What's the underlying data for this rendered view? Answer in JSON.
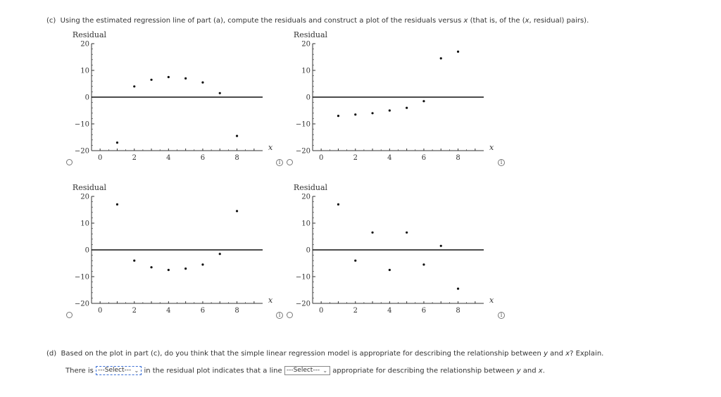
{
  "part_c": {
    "prefix": "(c)",
    "text_before": "Using the estimated regression line of part (a), compute the residuals and construct a plot of the residuals versus ",
    "var_x": "x",
    "text_middle": " (that is, of the (",
    "var_x2": "x",
    "text_after": ", residual) pairs)."
  },
  "plot_labels": {
    "ylabel": "Residual",
    "xlabel": "x",
    "yticks": [
      "20",
      "10",
      "0",
      "−10",
      "−20"
    ],
    "xticks": [
      "0",
      "2",
      "4",
      "6",
      "8"
    ]
  },
  "chart_data": [
    {
      "type": "scatter",
      "xlabel": "x",
      "ylabel": "Residual",
      "xlim": [
        -0.5,
        9.5
      ],
      "ylim": [
        -20,
        20
      ],
      "reference_line_y": 0,
      "x": [
        1,
        2,
        3,
        4,
        5,
        6,
        7,
        8
      ],
      "y": [
        -17,
        4,
        6.5,
        7.5,
        7,
        5.5,
        1.5,
        -14.5
      ]
    },
    {
      "type": "scatter",
      "xlabel": "x",
      "ylabel": "Residual",
      "xlim": [
        -0.5,
        9.5
      ],
      "ylim": [
        -20,
        20
      ],
      "reference_line_y": 0,
      "x": [
        1,
        2,
        3,
        4,
        5,
        6,
        7,
        8
      ],
      "y": [
        -7,
        -6.5,
        -6,
        -5,
        -4,
        -1.5,
        14.5,
        17
      ]
    },
    {
      "type": "scatter",
      "xlabel": "x",
      "ylabel": "Residual",
      "xlim": [
        -0.5,
        9.5
      ],
      "ylim": [
        -20,
        20
      ],
      "reference_line_y": 0,
      "x": [
        1,
        2,
        3,
        4,
        5,
        6,
        7,
        8
      ],
      "y": [
        17,
        -4,
        -6.5,
        -7.5,
        -7,
        -5.5,
        -1.5,
        14.5
      ]
    },
    {
      "type": "scatter",
      "xlabel": "x",
      "ylabel": "Residual",
      "xlim": [
        -0.5,
        9.5
      ],
      "ylim": [
        -20,
        20
      ],
      "reference_line_y": 0,
      "x": [
        1,
        2,
        3,
        4,
        5,
        6,
        7,
        8
      ],
      "y": [
        17,
        -4,
        6.5,
        -7.5,
        6.5,
        -5.5,
        1.5,
        -14.5
      ]
    }
  ],
  "part_d": {
    "prefix": "(d)",
    "question_before": "Based on the plot in part (c), do you think that the simple linear regression model is appropriate for describing the relationship between ",
    "var_y": "y",
    "question_and": " and ",
    "var_x": "x",
    "question_end": "? Explain.",
    "answer_start": "There is",
    "select1_value": "---Select---",
    "answer_mid": "in the residual plot indicates that a line",
    "select2_value": "---Select---",
    "answer_end_before": "appropriate for describing the relationship between ",
    "answer_var_y": "y",
    "answer_and": " and ",
    "answer_var_x": "x",
    "answer_period": "."
  }
}
